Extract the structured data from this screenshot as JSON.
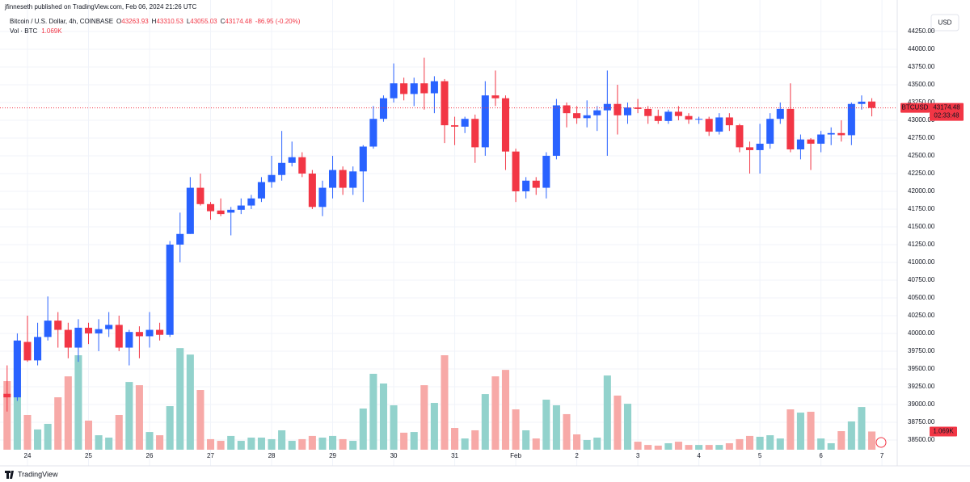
{
  "chart_data": {
    "type": "candlestick",
    "publisher": "jfinneseth published on TradingView.com, Feb 06, 2024 21:26 UTC",
    "title": "Bitcoin / U.S. Dollar, 4h, COINBASE",
    "ohlc_labels": [
      "O",
      "H",
      "L",
      "C"
    ],
    "change_label": "-86.95 (-0.20%)",
    "volume_label": "Vol · BTC",
    "volume_last_label": "1.069K",
    "currency": "USD",
    "symbol": "BTCUSD",
    "countdown": "02:33:48",
    "brand": "TradingView",
    "up_color": "#2962ff",
    "down_color": "#f23645",
    "volume_up_color": "#92d2cc",
    "volume_down_color": "#f7a9a7",
    "grid": true,
    "open": [
      39150,
      39100,
      39880,
      39620,
      39950,
      40180,
      40050,
      39800,
      40080,
      40000,
      40060,
      40120,
      39800,
      40020,
      39960,
      40050,
      39980,
      41250,
      41400,
      42050,
      41820,
      41730,
      41700,
      41740,
      41800,
      41900,
      42130,
      42230,
      42400,
      42480,
      42250,
      41780,
      42050,
      42300,
      42050,
      42280,
      42630,
      43020,
      43310,
      43520,
      43370,
      43520,
      43380,
      43550,
      42930,
      42910,
      43020,
      42620,
      43350,
      43310,
      42560,
      42000,
      42150,
      42050,
      42500,
      43210,
      43100,
      43030,
      43070,
      43140,
      43230,
      43070,
      43180,
      43160,
      43060,
      42990,
      43120,
      43060,
      43010,
      43020,
      42840,
      43040,
      42930,
      42620,
      42580,
      42670,
      43020,
      43160,
      42590,
      42730,
      42670,
      42800,
      42820,
      42790,
      43230,
      43263.93
    ],
    "high": [
      39550,
      40000,
      40250,
      40150,
      40520,
      40300,
      40150,
      40200,
      40150,
      40200,
      40300,
      40250,
      40050,
      40100,
      40300,
      40150,
      41300,
      41700,
      42200,
      42250,
      41850,
      41900,
      41780,
      41900,
      41950,
      42200,
      42500,
      42850,
      42700,
      42550,
      42300,
      42150,
      42500,
      42350,
      42350,
      42650,
      43200,
      43350,
      43800,
      43600,
      43600,
      43880,
      43620,
      43580,
      43050,
      43050,
      43080,
      43550,
      43700,
      43350,
      42600,
      42200,
      42200,
      42550,
      43300,
      43250,
      43200,
      43280,
      43200,
      43700,
      43500,
      43250,
      43300,
      43200,
      43150,
      43150,
      43200,
      43100,
      43050,
      43050,
      43100,
      43100,
      42950,
      42700,
      42950,
      43100,
      43250,
      43520,
      42800,
      42750,
      42850,
      42900,
      43000,
      43250,
      43350,
      43310.53
    ],
    "low": [
      38900,
      39050,
      39600,
      39550,
      39900,
      39800,
      39650,
      39600,
      39850,
      39750,
      39950,
      39750,
      39550,
      39650,
      39800,
      39900,
      39950,
      41000,
      41400,
      41800,
      41600,
      41650,
      41380,
      41680,
      41750,
      41850,
      42050,
      42150,
      42350,
      42200,
      41750,
      41650,
      41900,
      41950,
      41950,
      41850,
      42600,
      42980,
      43250,
      43280,
      43200,
      43150,
      43100,
      42680,
      42650,
      42820,
      42400,
      42500,
      43200,
      42300,
      41850,
      41900,
      41950,
      41900,
      42450,
      42900,
      42950,
      42900,
      42850,
      42500,
      42800,
      42950,
      43100,
      42950,
      42950,
      42950,
      43000,
      42950,
      42950,
      42780,
      42800,
      42850,
      42550,
      42250,
      42250,
      42600,
      42950,
      42550,
      42450,
      42300,
      42550,
      42650,
      42700,
      42650,
      43150,
      43055.03
    ],
    "close": [
      39100,
      39900,
      39620,
      39950,
      40180,
      40050,
      39800,
      40080,
      40000,
      40060,
      40120,
      39800,
      40020,
      39960,
      40050,
      39980,
      41250,
      41400,
      42050,
      41820,
      41720,
      41680,
      41740,
      41800,
      41900,
      42130,
      42230,
      42400,
      42480,
      42250,
      41780,
      42050,
      42300,
      42050,
      42280,
      42630,
      43020,
      43310,
      43520,
      43370,
      43520,
      43380,
      43550,
      42930,
      42910,
      43020,
      42620,
      43350,
      43310,
      42560,
      42000,
      42150,
      42050,
      42500,
      43210,
      43100,
      43030,
      43070,
      43140,
      43230,
      43070,
      43180,
      43160,
      43060,
      42990,
      43120,
      43060,
      43010,
      43020,
      42840,
      43040,
      42930,
      42620,
      42580,
      42670,
      43020,
      43160,
      42590,
      42730,
      42670,
      42800,
      42820,
      42790,
      43230,
      43262,
      43174.48
    ],
    "volume": [
      4030,
      6400,
      2040,
      1190,
      1520,
      3080,
      4310,
      5550,
      1710,
      850,
      710,
      2040,
      3980,
      3790,
      1040,
      850,
      2560,
      5970,
      5590,
      3510,
      620,
      520,
      810,
      520,
      710,
      710,
      620,
      1140,
      520,
      620,
      810,
      710,
      810,
      620,
      520,
      2420,
      4460,
      3890,
      2610,
      1000,
      1040,
      3790,
      2750,
      5550,
      1280,
      660,
      1140,
      3270,
      4310,
      4690,
      2370,
      1140,
      660,
      2940,
      2610,
      2090,
      900,
      570,
      710,
      4360,
      3180,
      2700,
      470,
      280,
      240,
      380,
      470,
      280,
      280,
      280,
      280,
      380,
      620,
      810,
      760,
      850,
      660,
      2370,
      2180,
      2230,
      660,
      380,
      1090,
      1660,
      2510,
      1069
    ],
    "volume_lim": [
      0,
      25000
    ],
    "xlim": [
      -0.7,
      87.5
    ],
    "xticks": [
      {
        "value": 2,
        "label": "24"
      },
      {
        "value": 8,
        "label": "25"
      },
      {
        "value": 14,
        "label": "26"
      },
      {
        "value": 20,
        "label": "27"
      },
      {
        "value": 26,
        "label": "28"
      },
      {
        "value": 32,
        "label": "29"
      },
      {
        "value": 38,
        "label": "30"
      },
      {
        "value": 44,
        "label": "31"
      },
      {
        "value": 50,
        "label": "Feb"
      },
      {
        "value": 56,
        "label": "2"
      },
      {
        "value": 62,
        "label": "3"
      },
      {
        "value": 68,
        "label": "4"
      },
      {
        "value": 74,
        "label": "5"
      },
      {
        "value": 80,
        "label": "6"
      },
      {
        "value": 86,
        "label": "7"
      }
    ],
    "ylim": [
      38363,
      44352
    ],
    "yticks": [
      {
        "value": 38500,
        "label": "38500.00"
      },
      {
        "value": 38750,
        "label": "38750.00"
      },
      {
        "value": 39000,
        "label": "39000.00"
      },
      {
        "value": 39250,
        "label": "39250.00"
      },
      {
        "value": 39500,
        "label": "39500.00"
      },
      {
        "value": 39750,
        "label": "39750.00"
      },
      {
        "value": 40000,
        "label": "40000.00"
      },
      {
        "value": 40250,
        "label": "40250.00"
      },
      {
        "value": 40500,
        "label": "40500.00"
      },
      {
        "value": 40750,
        "label": "40750.00"
      },
      {
        "value": 41000,
        "label": "41000.00"
      },
      {
        "value": 41250,
        "label": "41250.00"
      },
      {
        "value": 41500,
        "label": "41500.00"
      },
      {
        "value": 41750,
        "label": "41750.00"
      },
      {
        "value": 42000,
        "label": "42000.00"
      },
      {
        "value": 42250,
        "label": "42250.00"
      },
      {
        "value": 42500,
        "label": "42500.00"
      },
      {
        "value": 42750,
        "label": "42750.00"
      },
      {
        "value": 43000,
        "label": "43000.00"
      },
      {
        "value": 43250,
        "label": "43250.00"
      },
      {
        "value": 43500,
        "label": "43500.00"
      },
      {
        "value": 43750,
        "label": "43750.00"
      },
      {
        "value": 44000,
        "label": "44000.00"
      },
      {
        "value": 44250,
        "label": "44250.00"
      }
    ]
  }
}
